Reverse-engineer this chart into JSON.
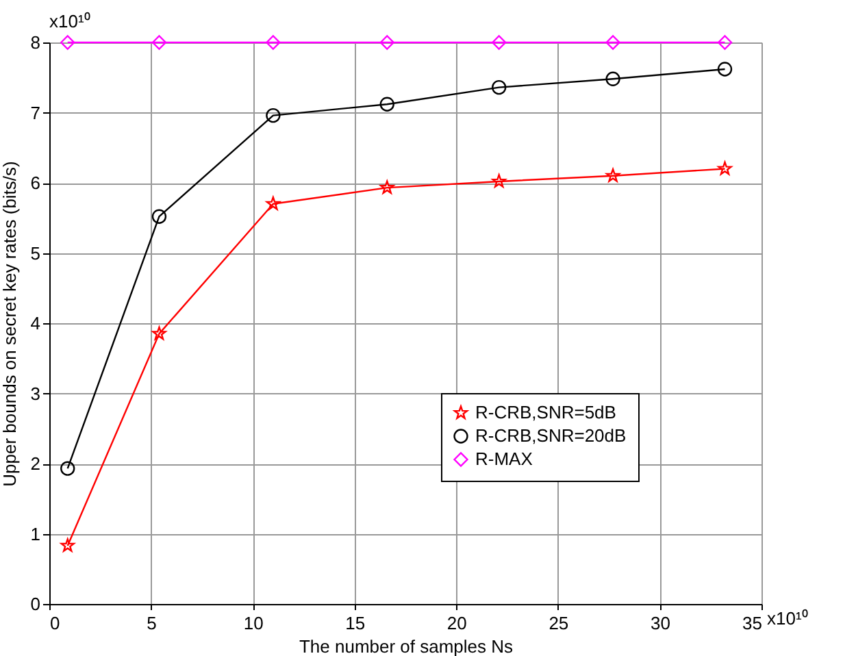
{
  "chart_data": {
    "type": "line",
    "xlabel": "The number of samples Ns",
    "ylabel": "Upper bounds on secret key rates (bits/s)",
    "x": [
      0.9,
      5.4,
      11.0,
      16.6,
      22.1,
      27.7,
      33.2
    ],
    "series": [
      {
        "name": "R-CRB,SNR=5dB",
        "color": "#ff0000",
        "marker": "star",
        "values": [
          0.83,
          3.85,
          5.7,
          5.93,
          6.02,
          6.1,
          6.2
        ]
      },
      {
        "name": "R-CRB,SNR=20dB",
        "color": "#000000",
        "marker": "circle",
        "values": [
          1.93,
          5.52,
          6.96,
          7.12,
          7.36,
          7.48,
          7.62
        ]
      },
      {
        "name": "R-MAX",
        "color": "#ff00ff",
        "marker": "diamond",
        "values": [
          8,
          8,
          8,
          8,
          8,
          8,
          8
        ]
      }
    ],
    "xlim": [
      0,
      35
    ],
    "xticks": [
      0,
      5,
      10,
      15,
      20,
      25,
      30,
      35
    ],
    "ylim": [
      0,
      8
    ],
    "yticks": [
      0,
      1,
      2,
      3,
      4,
      5,
      6,
      7,
      8
    ],
    "annotations": [
      "x10¹⁰",
      "x10¹⁰"
    ],
    "grid": true,
    "legend": "bottom right",
    "line_style": "solid"
  }
}
